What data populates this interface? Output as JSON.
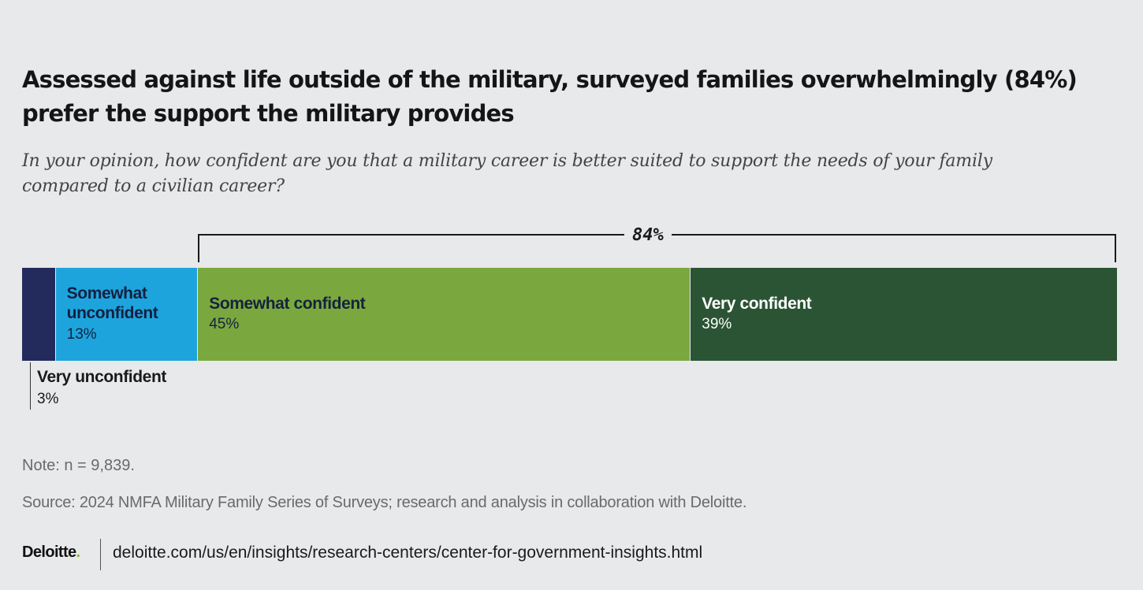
{
  "chart_data": {
    "type": "bar",
    "orientation": "horizontal-stacked",
    "title": "Assessed against life outside of the military,  surveyed families overwhelmingly (84%) prefer the support the military provides",
    "subtitle": "In your opinion, how confident are you that a military career is better suited to support the needs of your family compared to a civilian career?",
    "categories": [
      "Very unconfident",
      "Somewhat unconfident",
      "Somewhat confident",
      "Very confident"
    ],
    "values": [
      3,
      13,
      45,
      39
    ],
    "value_labels": [
      "3%",
      "13%",
      "45%",
      "39%"
    ],
    "colors": [
      "#232b5c",
      "#1ea4dd",
      "#7aa83f",
      "#2b5434"
    ],
    "bracket": {
      "label": "84%",
      "spans": [
        "Somewhat confident",
        "Very confident"
      ]
    },
    "note": "Note: n = 9,839.",
    "source": "Source: 2024 NMFA Military Family Series of Surveys; research and analysis in collaboration with Deloitte."
  },
  "footer": {
    "logo_text": "Deloitte",
    "logo_dot": ".",
    "url": "deloitte.com/us/en/insights/research-centers/center-for-government-insights.html"
  }
}
